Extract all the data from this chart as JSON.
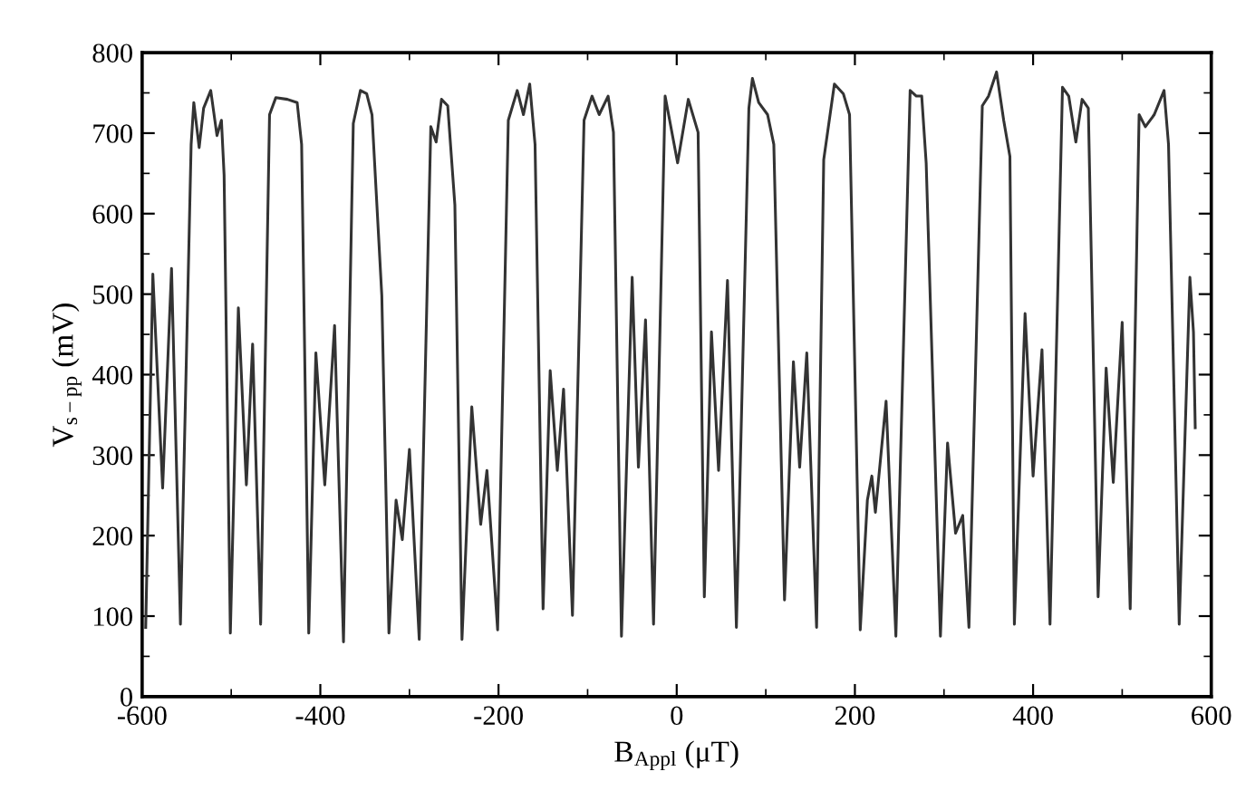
{
  "chart_data": {
    "type": "line",
    "xlabel": "B$_{Appl}$ (μT)",
    "ylabel": "V$_{s−pp}$ (mV)",
    "xlim": [
      -600,
      600
    ],
    "xticks": [
      -600,
      -400,
      -200,
      0,
      200,
      400,
      600
    ],
    "ylim": [
      0,
      800
    ],
    "yticks": [
      0,
      100,
      200,
      300,
      400,
      500,
      600,
      700,
      800
    ],
    "grid": false,
    "legend": false,
    "marker": "none",
    "line_style": "solid",
    "series": [
      {
        "color": "#333333",
        "x": [
          -596,
          -588,
          -577,
          -567,
          -557,
          -545,
          -542,
          -536,
          -531,
          -523,
          -516,
          -511,
          -508,
          -501,
          -492,
          -483,
          -476,
          -467,
          -457,
          -450,
          -437,
          -426,
          -421,
          -413,
          -405,
          -395,
          -384,
          -374,
          -363,
          -355,
          -348,
          -342,
          -331,
          -323,
          -315,
          -308,
          -300,
          -289,
          -276,
          -270,
          -264,
          -257,
          -249,
          -241,
          -230,
          -220,
          -213,
          -201,
          -189,
          -179,
          -172,
          -165,
          -159,
          -150,
          -142,
          -134,
          -127,
          -117,
          -104,
          -95,
          -87,
          -77,
          -71,
          -62,
          -50,
          -43,
          -35,
          -26,
          -13,
          1,
          13,
          24,
          31,
          39,
          47,
          57,
          67,
          81,
          85,
          92,
          102,
          109,
          121,
          131,
          138,
          146,
          157,
          165,
          177,
          187,
          194,
          206,
          214,
          219,
          223,
          235,
          246,
          262,
          269,
          275,
          280,
          296,
          304,
          313,
          321,
          328,
          343,
          350,
          359,
          367,
          374,
          379,
          391,
          400,
          410,
          419,
          433,
          440,
          448,
          455,
          462,
          473,
          482,
          490,
          500,
          509,
          519,
          526,
          536,
          547,
          552,
          564,
          576,
          580,
          582
        ],
        "values": [
          86,
          525,
          259,
          532,
          90,
          686,
          738,
          682,
          731,
          753,
          697,
          716,
          648,
          79,
          483,
          263,
          438,
          90,
          723,
          744,
          742,
          738,
          686,
          79,
          427,
          263,
          461,
          68,
          712,
          753,
          749,
          723,
          498,
          79,
          244,
          195,
          307,
          71,
          708,
          689,
          742,
          734,
          611,
          71,
          360,
          214,
          281,
          83,
          716,
          753,
          723,
          761,
          686,
          109,
          405,
          281,
          382,
          101,
          716,
          746,
          723,
          746,
          701,
          75,
          521,
          285,
          468,
          90,
          746,
          663,
          742,
          701,
          124,
          453,
          281,
          517,
          86,
          731,
          768,
          738,
          723,
          686,
          120,
          416,
          285,
          427,
          86,
          667,
          761,
          749,
          723,
          83,
          244,
          274,
          229,
          367,
          75,
          753,
          746,
          746,
          663,
          75,
          315,
          203,
          225,
          86,
          734,
          746,
          776,
          716,
          671,
          90,
          476,
          274,
          431,
          90,
          757,
          746,
          689,
          742,
          731,
          124,
          408,
          266,
          465,
          109,
          723,
          708,
          723,
          753,
          686,
          90,
          521,
          453,
          334
        ]
      }
    ]
  }
}
